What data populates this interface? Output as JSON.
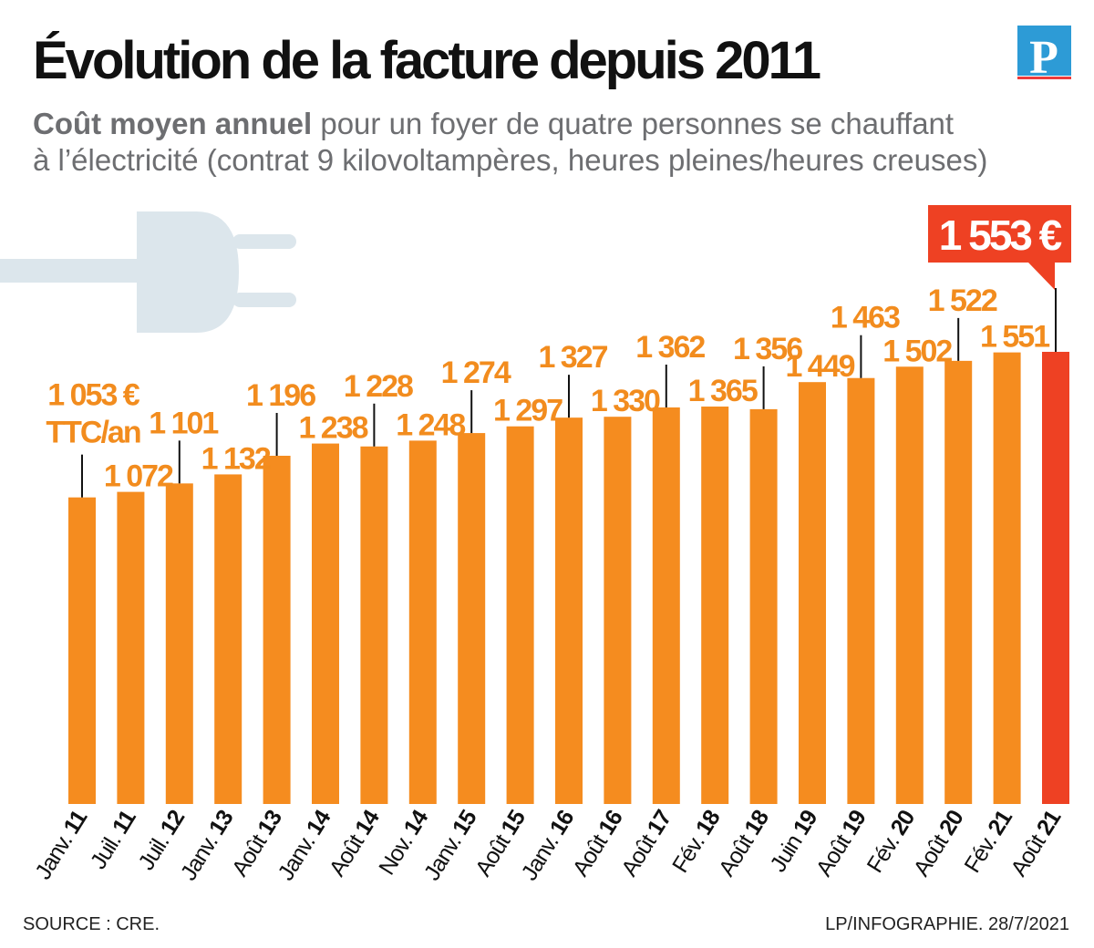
{
  "title": "Évolution de la facture depuis 2011",
  "subtitle": {
    "bold": "Coût moyen annuel",
    "line1_rest": " pour un foyer de quatre personnes se chauffant",
    "line2": "à l’électricité (contrat 9 kilovoltampères, heures pleines/heures creuses)"
  },
  "logo": {
    "letter": "P",
    "color": "#2d9bd6",
    "underline_color": "#ee3b3b"
  },
  "footer": {
    "source": "SOURCE : CRE.",
    "credit": "LP/INFOGRAPHIE.  28/7/2021"
  },
  "colors": {
    "bar": "#f58c1f",
    "highlight": "#ee4123",
    "plug": "#dce6ec"
  },
  "chart_data": {
    "type": "bar",
    "title": "Évolution de la facture depuis 2011",
    "unit_label": "€ TTC/an",
    "categories": [
      {
        "month": "Janv.",
        "year": "11"
      },
      {
        "month": "Juil.",
        "year": "11"
      },
      {
        "month": "Juil.",
        "year": "12"
      },
      {
        "month": "Janv.",
        "year": "13"
      },
      {
        "month": "Août",
        "year": "13"
      },
      {
        "month": "Janv.",
        "year": "14"
      },
      {
        "month": "Août",
        "year": "14"
      },
      {
        "month": "Nov.",
        "year": "14"
      },
      {
        "month": "Janv.",
        "year": "15"
      },
      {
        "month": "Août",
        "year": "15"
      },
      {
        "month": "Janv.",
        "year": "16"
      },
      {
        "month": "Août",
        "year": "16"
      },
      {
        "month": "Août",
        "year": "17"
      },
      {
        "month": "Fév.",
        "year": "18"
      },
      {
        "month": "Août",
        "year": "18"
      },
      {
        "month": "Juin",
        "year": "19"
      },
      {
        "month": "Août",
        "year": "19"
      },
      {
        "month": "Fév.",
        "year": "20"
      },
      {
        "month": "Août",
        "year": "20"
      },
      {
        "month": "Fév.",
        "year": "21"
      },
      {
        "month": "Août",
        "year": "21"
      }
    ],
    "values": [
      1053,
      1072,
      1101,
      1132,
      1196,
      1238,
      1228,
      1248,
      1274,
      1297,
      1327,
      1330,
      1362,
      1365,
      1356,
      1449,
      1463,
      1502,
      1522,
      1551,
      1553
    ],
    "value_labels": [
      "1 053 €",
      "1 072",
      "1 101",
      "1 132",
      "1 196",
      "1 238",
      "1 228",
      "1 248",
      "1 274",
      "1 297",
      "1 327",
      "1 330",
      "1 362",
      "1 365",
      "1 356",
      "1 449",
      "1 463",
      "1 502",
      "1 522",
      "1 551",
      "1 553 €"
    ],
    "first_label_suffix": "TTC/an",
    "ylim": [
      0,
      1553
    ],
    "grid": false,
    "legend": "none"
  }
}
